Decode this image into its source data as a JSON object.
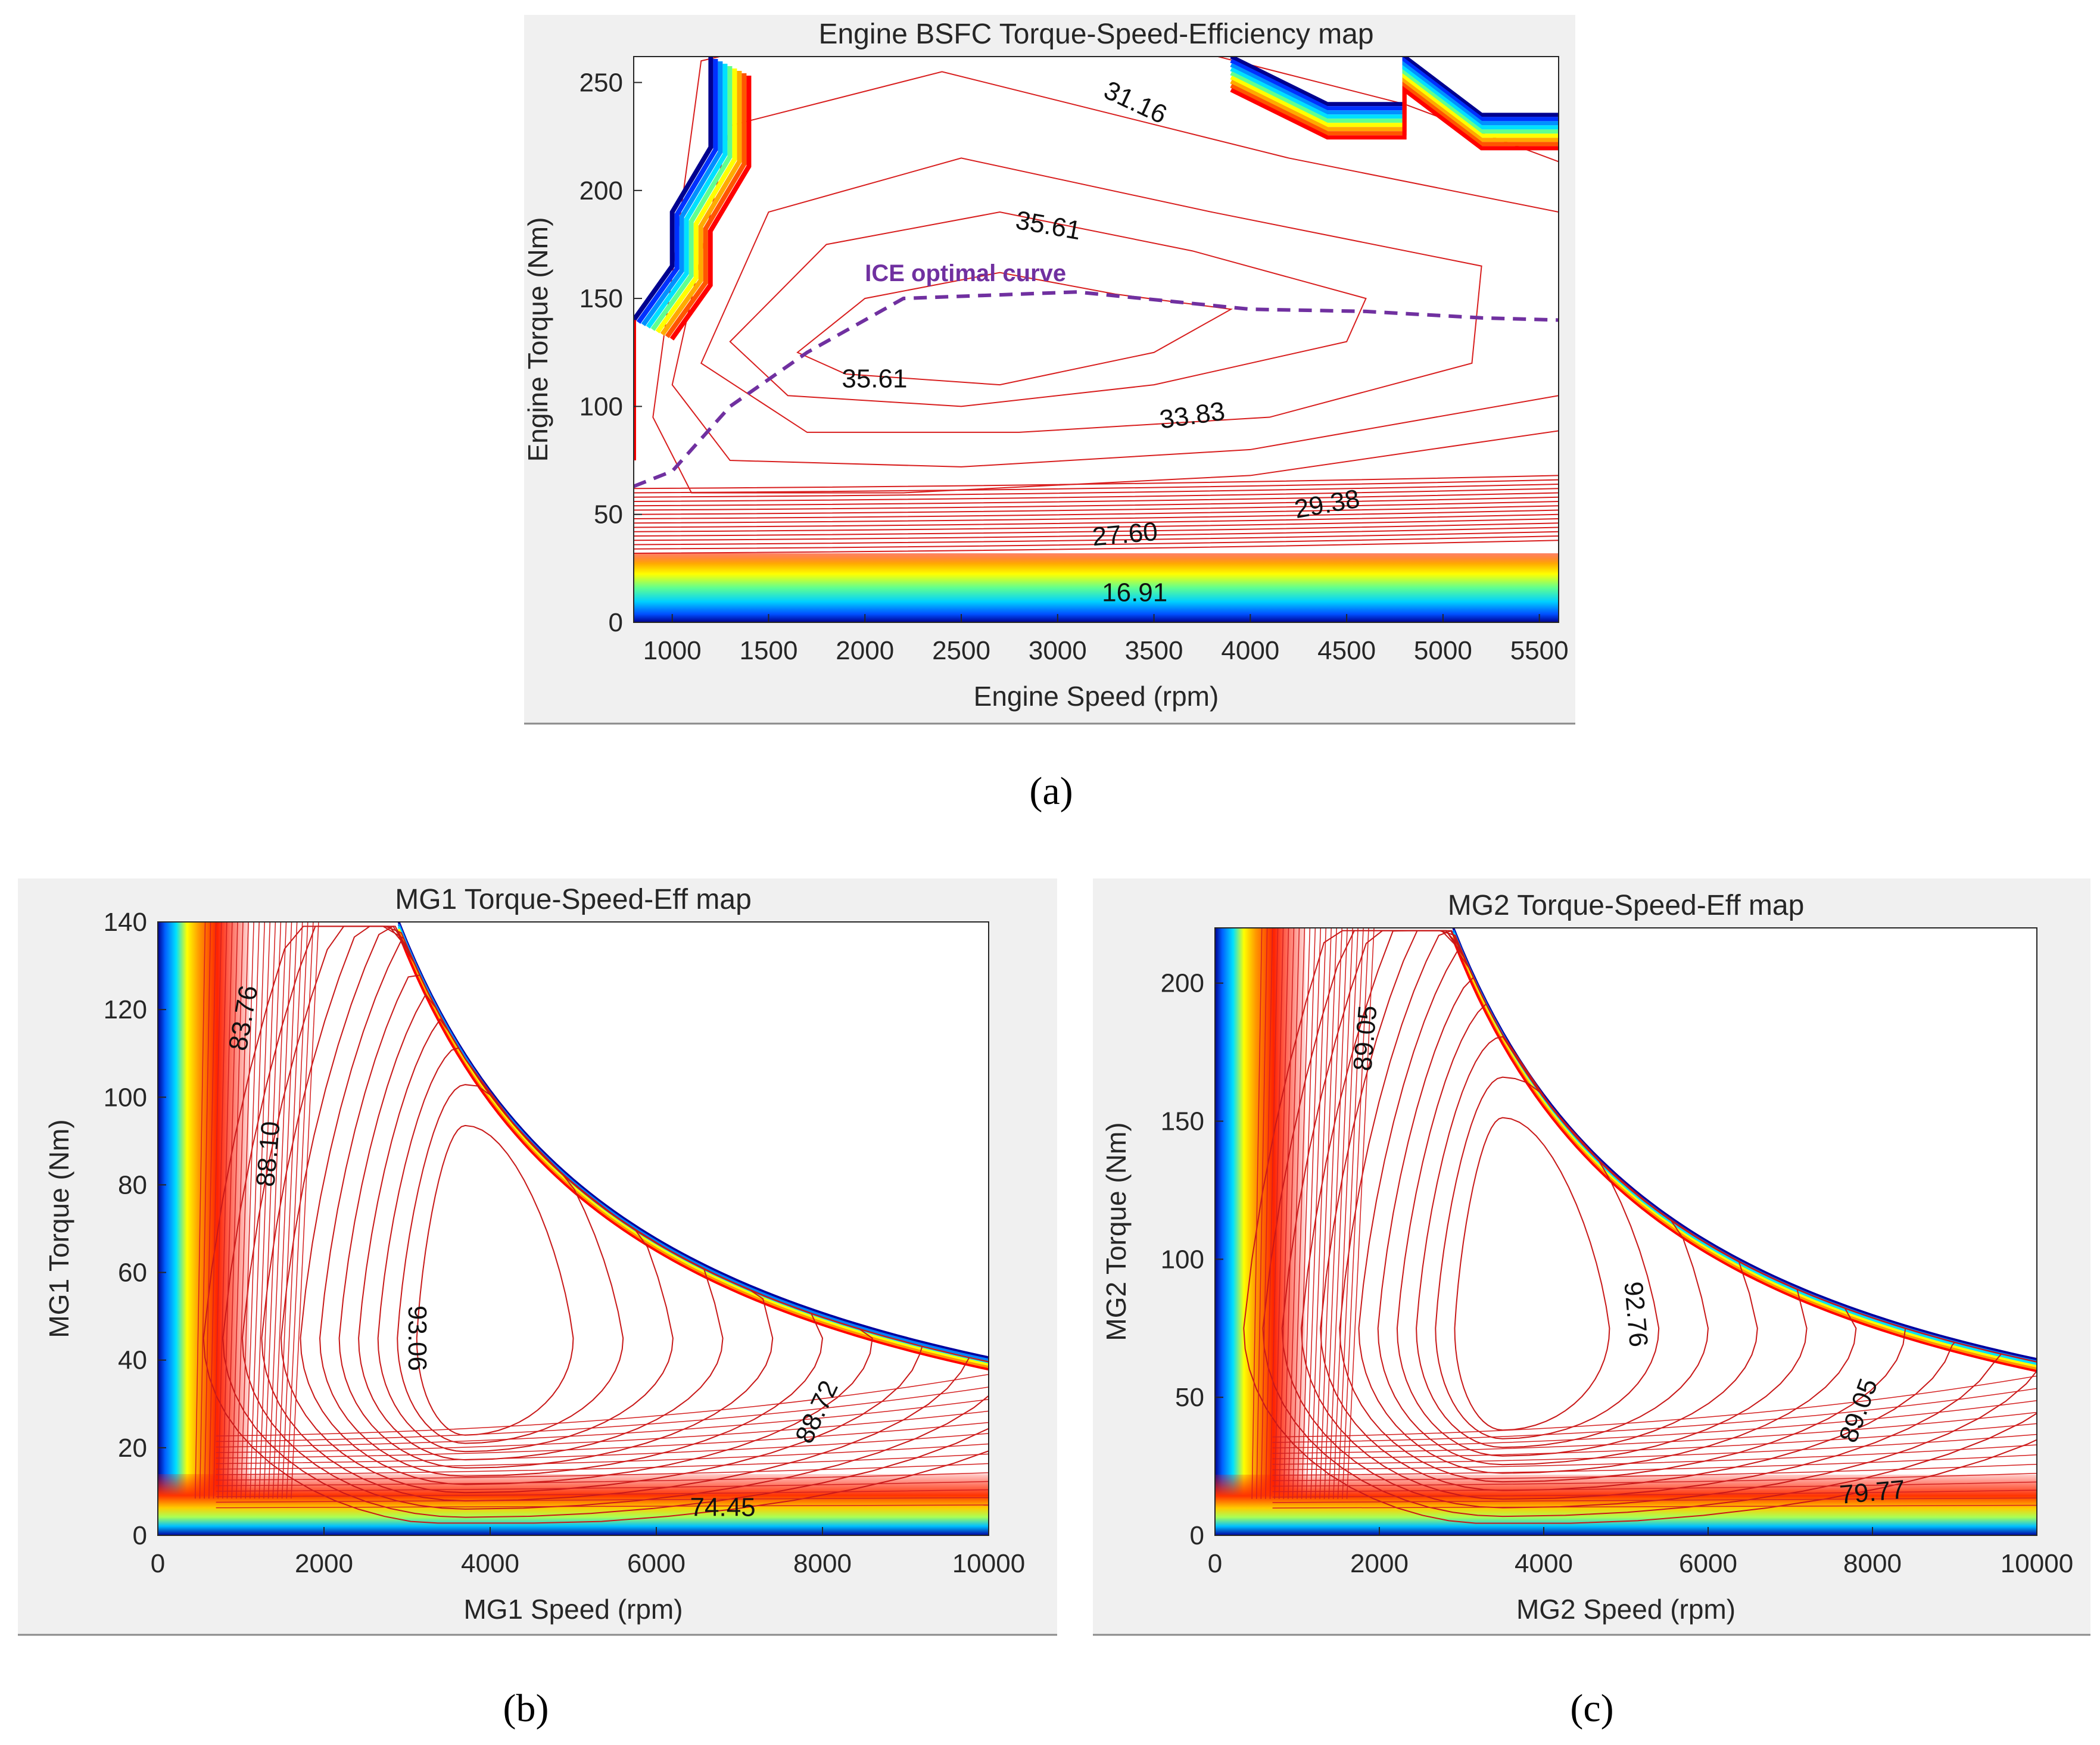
{
  "chart_data": [
    {
      "id": "engine",
      "type": "contour",
      "title": "Engine BSFC Torque-Speed-Efficiency map",
      "xlabel": "Engine Speed (rpm)",
      "ylabel": "Engine Torque (Nm)",
      "xlim": [
        800,
        5600
      ],
      "ylim": [
        0,
        262
      ],
      "xticks": [
        1000,
        1500,
        2000,
        2500,
        3000,
        3500,
        4000,
        4500,
        5000,
        5500
      ],
      "yticks": [
        0,
        50,
        100,
        150,
        200,
        250
      ],
      "caption": "(a)",
      "contour_labels": [
        {
          "text": "31.16",
          "x": 3400,
          "y": 240,
          "angle": 25
        },
        {
          "text": "35.61",
          "x": 2950,
          "y": 183,
          "angle": 10
        },
        {
          "text": "35.61",
          "x": 2050,
          "y": 112,
          "angle": 0
        },
        {
          "text": "33.83",
          "x": 3700,
          "y": 95,
          "angle": -8
        },
        {
          "text": "29.38",
          "x": 4400,
          "y": 54,
          "angle": -10
        },
        {
          "text": "27.60",
          "x": 3350,
          "y": 40,
          "angle": -5
        },
        {
          "text": "16.91",
          "x": 3400,
          "y": 13,
          "angle": 0
        }
      ],
      "annotation": {
        "text": "ICE optimal curve",
        "x": 2000,
        "y": 158
      },
      "optimal_curve": {
        "speed": [
          800,
          1000,
          1300,
          1700,
          2200,
          3100,
          4000,
          4600,
          5200,
          5600
        ],
        "torque": [
          63,
          70,
          100,
          125,
          150,
          153,
          145,
          144,
          141,
          140
        ]
      }
    },
    {
      "id": "mg1",
      "type": "contour",
      "title": "MG1 Torque-Speed-Eff map",
      "xlabel": "MG1 Speed (rpm)",
      "ylabel": "MG1 Torque (Nm)",
      "xlim": [
        0,
        10000
      ],
      "ylim": [
        0,
        140
      ],
      "xticks": [
        0,
        2000,
        4000,
        6000,
        8000,
        10000
      ],
      "yticks": [
        0,
        20,
        40,
        60,
        80,
        100,
        120,
        140
      ],
      "caption": "(b)",
      "peak": {
        "speed": 3700,
        "torque": 45,
        "rmax": 140
      },
      "contour_labels": [
        {
          "text": "83.76",
          "x": 1050,
          "y": 118,
          "angle": -80
        },
        {
          "text": "88.10",
          "x": 1350,
          "y": 87,
          "angle": -85
        },
        {
          "text": "93.06",
          "x": 3100,
          "y": 45,
          "angle": 90
        },
        {
          "text": "88.72",
          "x": 7950,
          "y": 28,
          "angle": -65
        },
        {
          "text": "74.45",
          "x": 6800,
          "y": 6,
          "angle": 0
        }
      ]
    },
    {
      "id": "mg2",
      "type": "contour",
      "title": "MG2 Torque-Speed-Eff map",
      "xlabel": "MG2 Speed (rpm)",
      "ylabel": "MG2 Torque (Nm)",
      "xlim": [
        0,
        10000
      ],
      "ylim": [
        0,
        220
      ],
      "xticks": [
        0,
        2000,
        4000,
        6000,
        8000,
        10000
      ],
      "yticks": [
        0,
        50,
        100,
        150,
        200
      ],
      "caption": "(c)",
      "peak": {
        "speed": 3500,
        "torque": 75,
        "rmax": 220
      },
      "contour_labels": [
        {
          "text": "89.05",
          "x": 1850,
          "y": 180,
          "angle": -85
        },
        {
          "text": "92.76",
          "x": 5100,
          "y": 80,
          "angle": 85
        },
        {
          "text": "89.05",
          "x": 7850,
          "y": 45,
          "angle": -70
        },
        {
          "text": "79.77",
          "x": 8000,
          "y": 15,
          "angle": -5
        }
      ]
    }
  ]
}
